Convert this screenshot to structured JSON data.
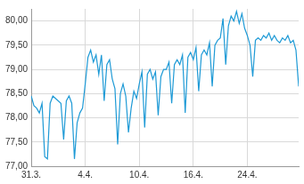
{
  "chart_data": {
    "type": "line",
    "categories": [
      "31.3.",
      null,
      null,
      null,
      null,
      null,
      null,
      null,
      null,
      null,
      null,
      null,
      null,
      null,
      null,
      null,
      null,
      null,
      null,
      null,
      "4.4.",
      null,
      null,
      null,
      null,
      null,
      null,
      null,
      null,
      null,
      null,
      null,
      null,
      null,
      null,
      null,
      null,
      null,
      null,
      null,
      "10.4.",
      null,
      null,
      null,
      null,
      null,
      null,
      null,
      null,
      null,
      null,
      null,
      null,
      null,
      null,
      null,
      null,
      null,
      null,
      null,
      "16.4.",
      null,
      null,
      null,
      null,
      null,
      null,
      null,
      null,
      null,
      null,
      null,
      null,
      null,
      null,
      null,
      null,
      null,
      null,
      null,
      "24.4.",
      null,
      null,
      null,
      null,
      null,
      null,
      null,
      null,
      null,
      null,
      null,
      null,
      null,
      null,
      null,
      null,
      null,
      null,
      null
    ],
    "values": [
      78.45,
      78.25,
      78.2,
      78.1,
      78.3,
      77.2,
      77.15,
      78.3,
      78.45,
      78.4,
      78.35,
      78.3,
      77.55,
      78.35,
      78.45,
      78.3,
      77.15,
      77.9,
      78.1,
      78.2,
      78.7,
      79.25,
      79.4,
      79.15,
      79.3,
      78.9,
      79.3,
      78.35,
      79.1,
      79.2,
      78.8,
      78.6,
      77.45,
      78.5,
      78.7,
      78.45,
      77.7,
      78.2,
      78.55,
      78.4,
      78.7,
      78.95,
      77.8,
      78.9,
      79.0,
      78.8,
      78.95,
      78.05,
      78.85,
      79.0,
      79.0,
      79.15,
      78.3,
      79.1,
      79.2,
      79.1,
      79.3,
      78.1,
      79.25,
      79.35,
      79.2,
      79.45,
      78.55,
      79.3,
      79.4,
      79.3,
      79.55,
      78.65,
      79.5,
      79.6,
      79.65,
      80.05,
      79.1,
      79.9,
      80.1,
      80.0,
      80.2,
      79.95,
      80.15,
      79.85,
      79.7,
      79.5,
      78.85,
      79.6,
      79.65,
      79.6,
      79.7,
      79.65,
      79.75,
      79.6,
      79.7,
      79.6,
      79.55,
      79.65,
      79.6,
      79.7,
      79.55,
      79.6,
      79.4,
      78.65
    ],
    "color": "#1e9ad6",
    "ylim": [
      77,
      80.25
    ],
    "yticks": [
      {
        "value": 77,
        "label": "77,00"
      },
      {
        "value": 77.5,
        "label": "77,50"
      },
      {
        "value": 78,
        "label": "78,00"
      },
      {
        "value": 78.5,
        "label": "78,50"
      },
      {
        "value": 79,
        "label": "79,00"
      },
      {
        "value": 79.5,
        "label": "79,50"
      },
      {
        "value": 80,
        "label": "80,00"
      }
    ],
    "grid": true
  }
}
